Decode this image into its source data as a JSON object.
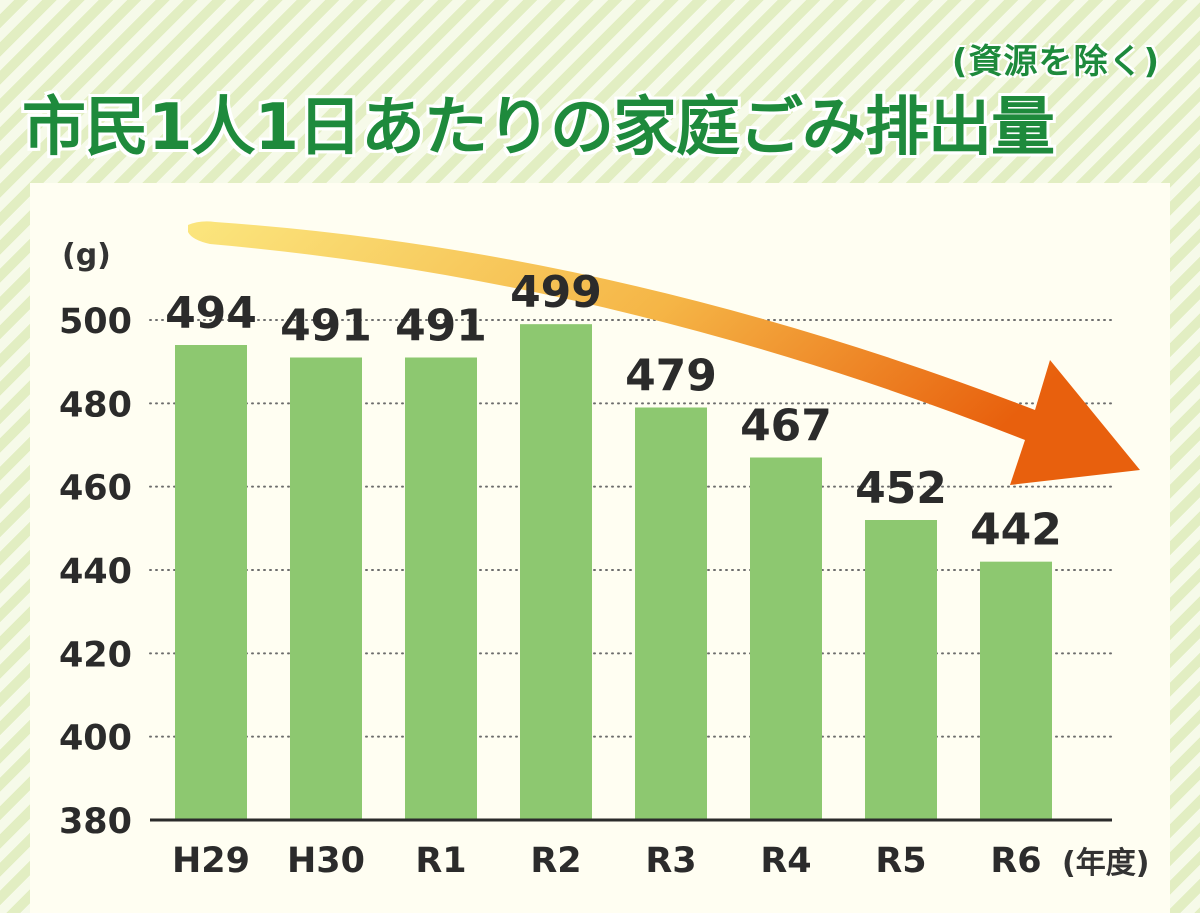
{
  "title": "市民1人1日あたりの家庭ごみ排出量",
  "subtitle": "(資源を除く)",
  "chart_data": {
    "type": "bar",
    "title": "市民1人1日あたりの家庭ごみ排出量",
    "subtitle": "(資源を除く)",
    "categories": [
      "H29",
      "H30",
      "R1",
      "R2",
      "R3",
      "R4",
      "R5",
      "R6"
    ],
    "values": [
      494,
      491,
      491,
      499,
      479,
      467,
      452,
      442
    ],
    "ylabel": "(g)",
    "xlabel": "(年度)",
    "ylim": [
      380,
      500
    ],
    "yticks": [
      380,
      400,
      420,
      440,
      460,
      480,
      500
    ],
    "grid": true,
    "bar_color": "#8dc870",
    "trend_arrow_colors": [
      "#fbe37a",
      "#f3a43a",
      "#e8600d"
    ],
    "title_color": "#1e8a3c"
  }
}
